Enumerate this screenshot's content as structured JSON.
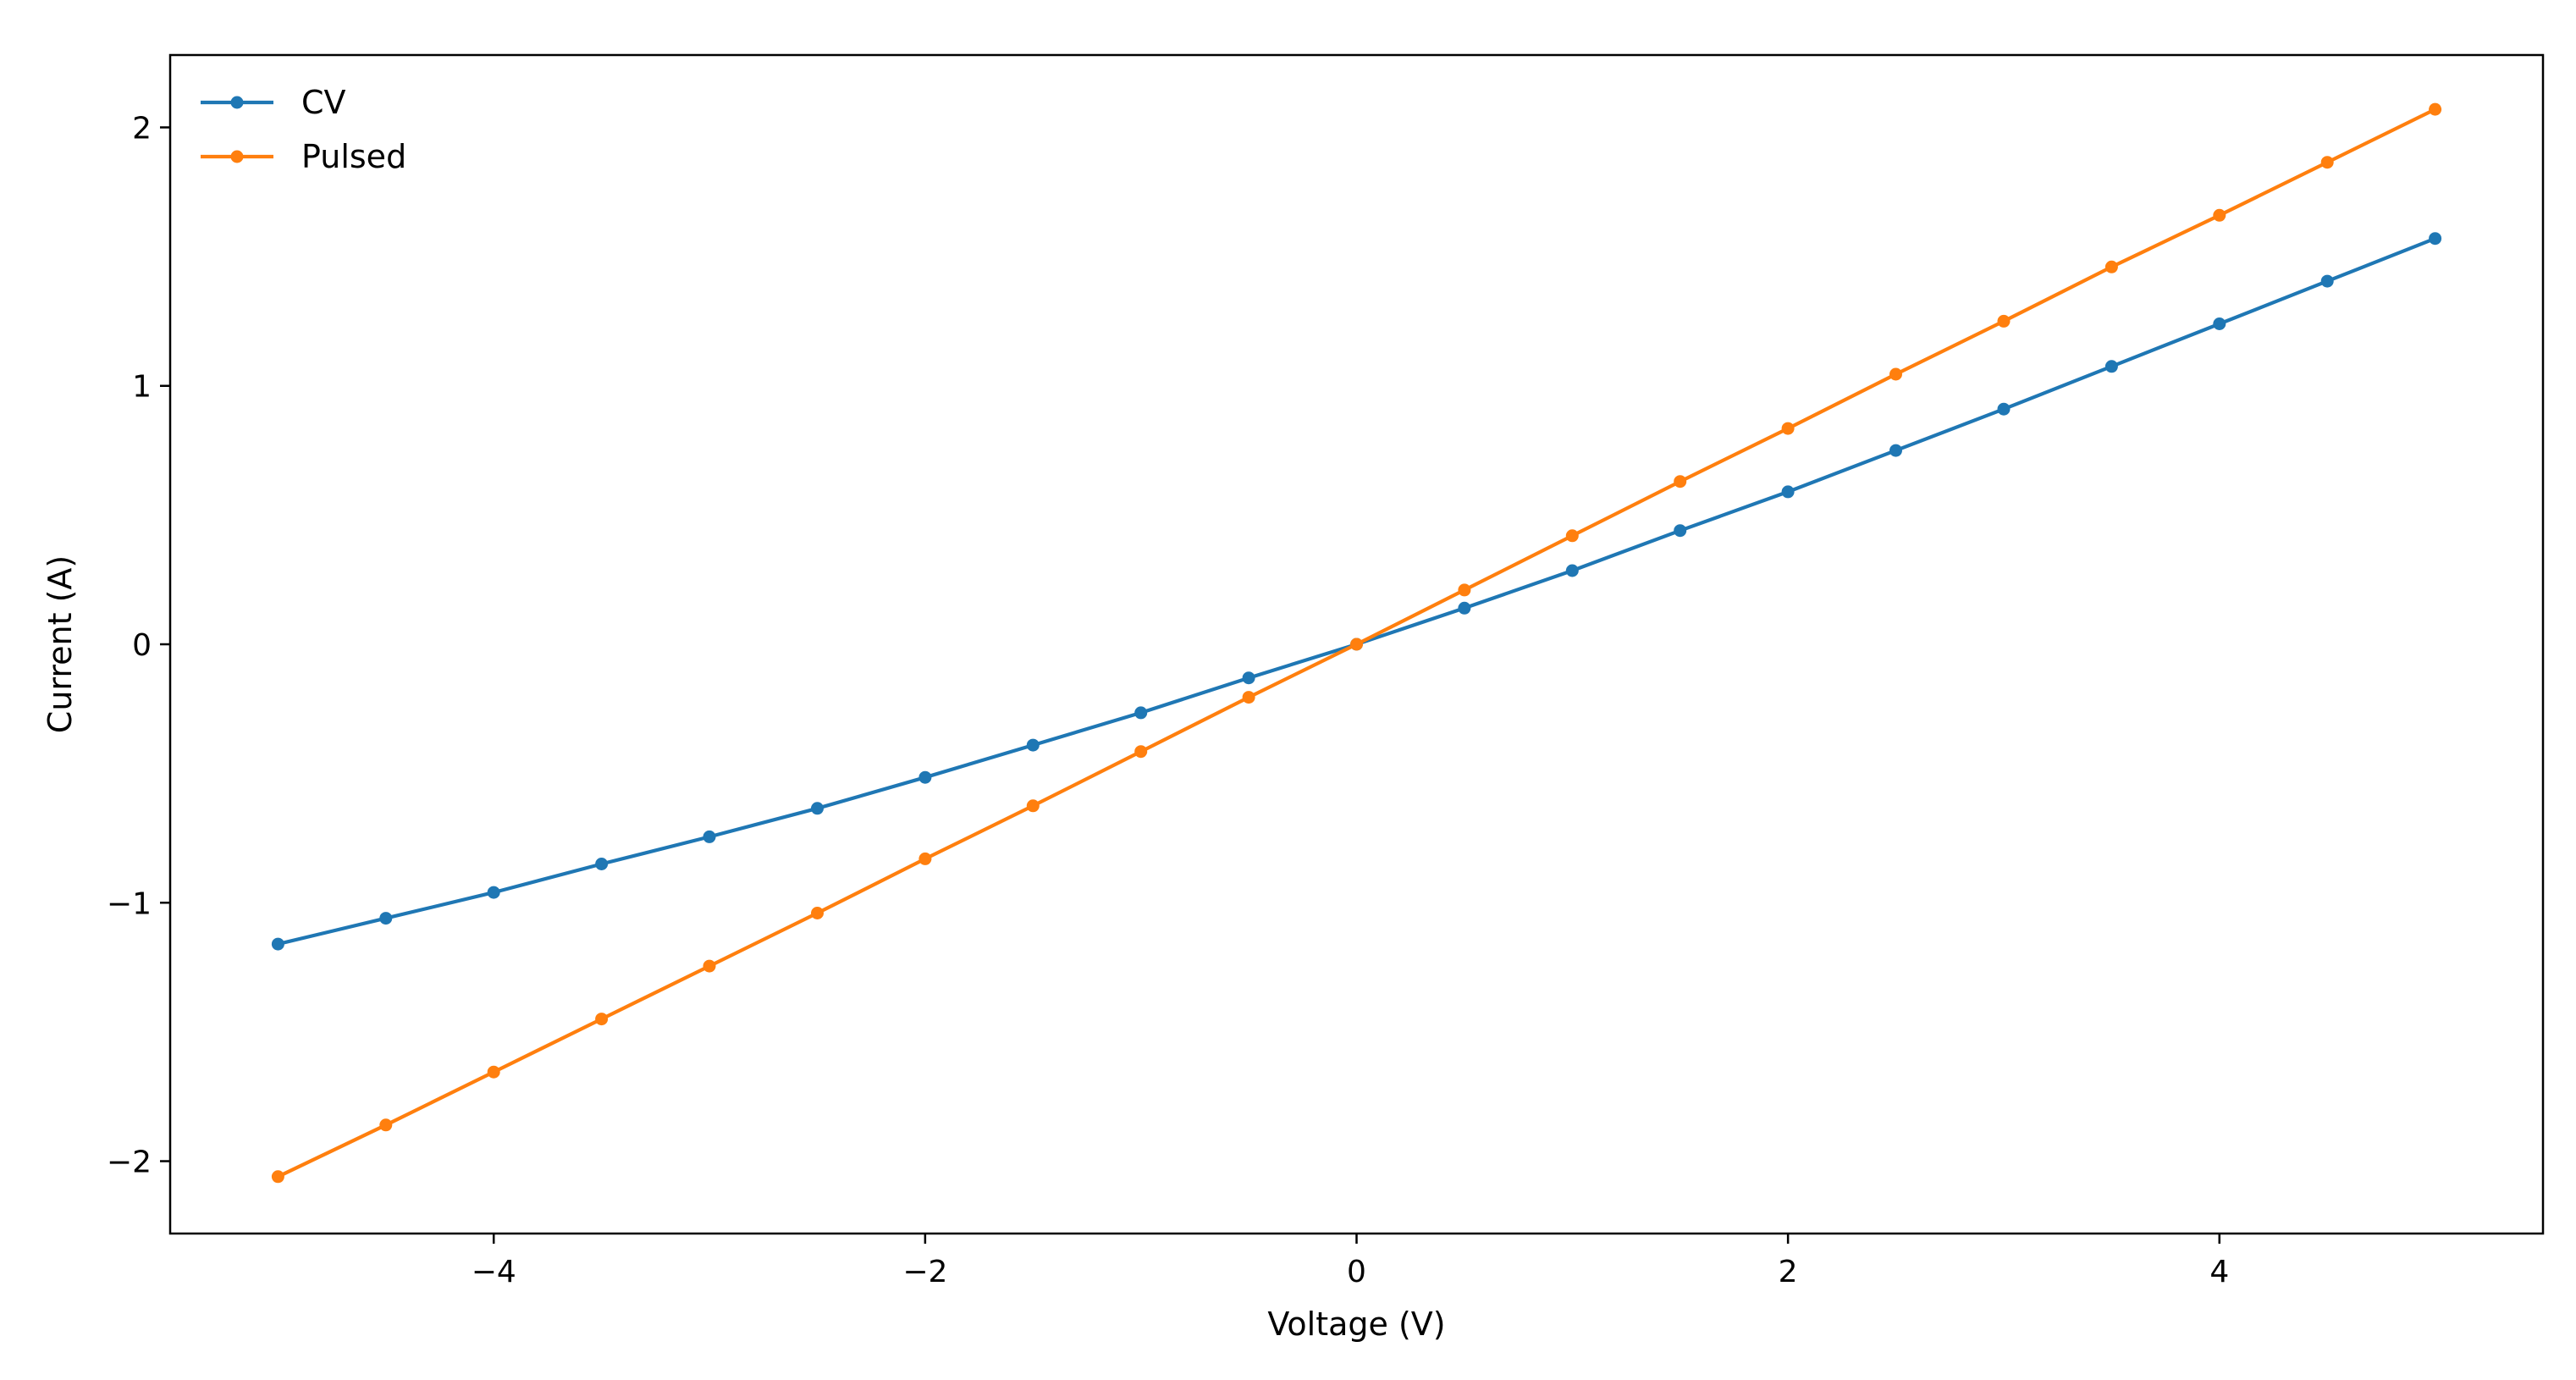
{
  "chart_data": {
    "type": "line",
    "title": "",
    "xlabel": "Voltage (V)",
    "ylabel": "Current (A)",
    "xlim": [
      -5.5,
      5.5
    ],
    "ylim": [
      -2.28,
      2.28
    ],
    "x_ticks": [
      -4,
      -2,
      0,
      2,
      4
    ],
    "x_tick_labels": [
      "−4",
      "−2",
      "0",
      "2",
      "4"
    ],
    "y_ticks": [
      -2,
      -1,
      0,
      1,
      2
    ],
    "y_tick_labels": [
      "−2",
      "−1",
      "0",
      "1",
      "2"
    ],
    "grid": false,
    "legend_position": "top-left",
    "x": [
      -5,
      -4.5,
      -4,
      -3.5,
      -3,
      -2.5,
      -2,
      -1.5,
      -1,
      -0.5,
      0,
      0.5,
      1,
      1.5,
      2,
      2.5,
      3,
      3.5,
      4,
      4.5,
      5
    ],
    "series": [
      {
        "name": "CV",
        "color": "#1f77b4",
        "values": [
          -1.16,
          -1.06,
          -0.96,
          -0.85,
          -0.745,
          -0.635,
          -0.515,
          -0.39,
          -0.265,
          -0.13,
          0.0,
          0.14,
          0.285,
          0.44,
          0.59,
          0.75,
          0.91,
          1.075,
          1.24,
          1.405,
          1.57
        ]
      },
      {
        "name": "Pulsed",
        "color": "#ff7f0e",
        "values": [
          -2.06,
          -1.86,
          -1.655,
          -1.45,
          -1.245,
          -1.04,
          -0.83,
          -0.625,
          -0.415,
          -0.205,
          0.0,
          0.21,
          0.42,
          0.63,
          0.835,
          1.045,
          1.25,
          1.46,
          1.66,
          1.865,
          2.07
        ]
      }
    ]
  }
}
